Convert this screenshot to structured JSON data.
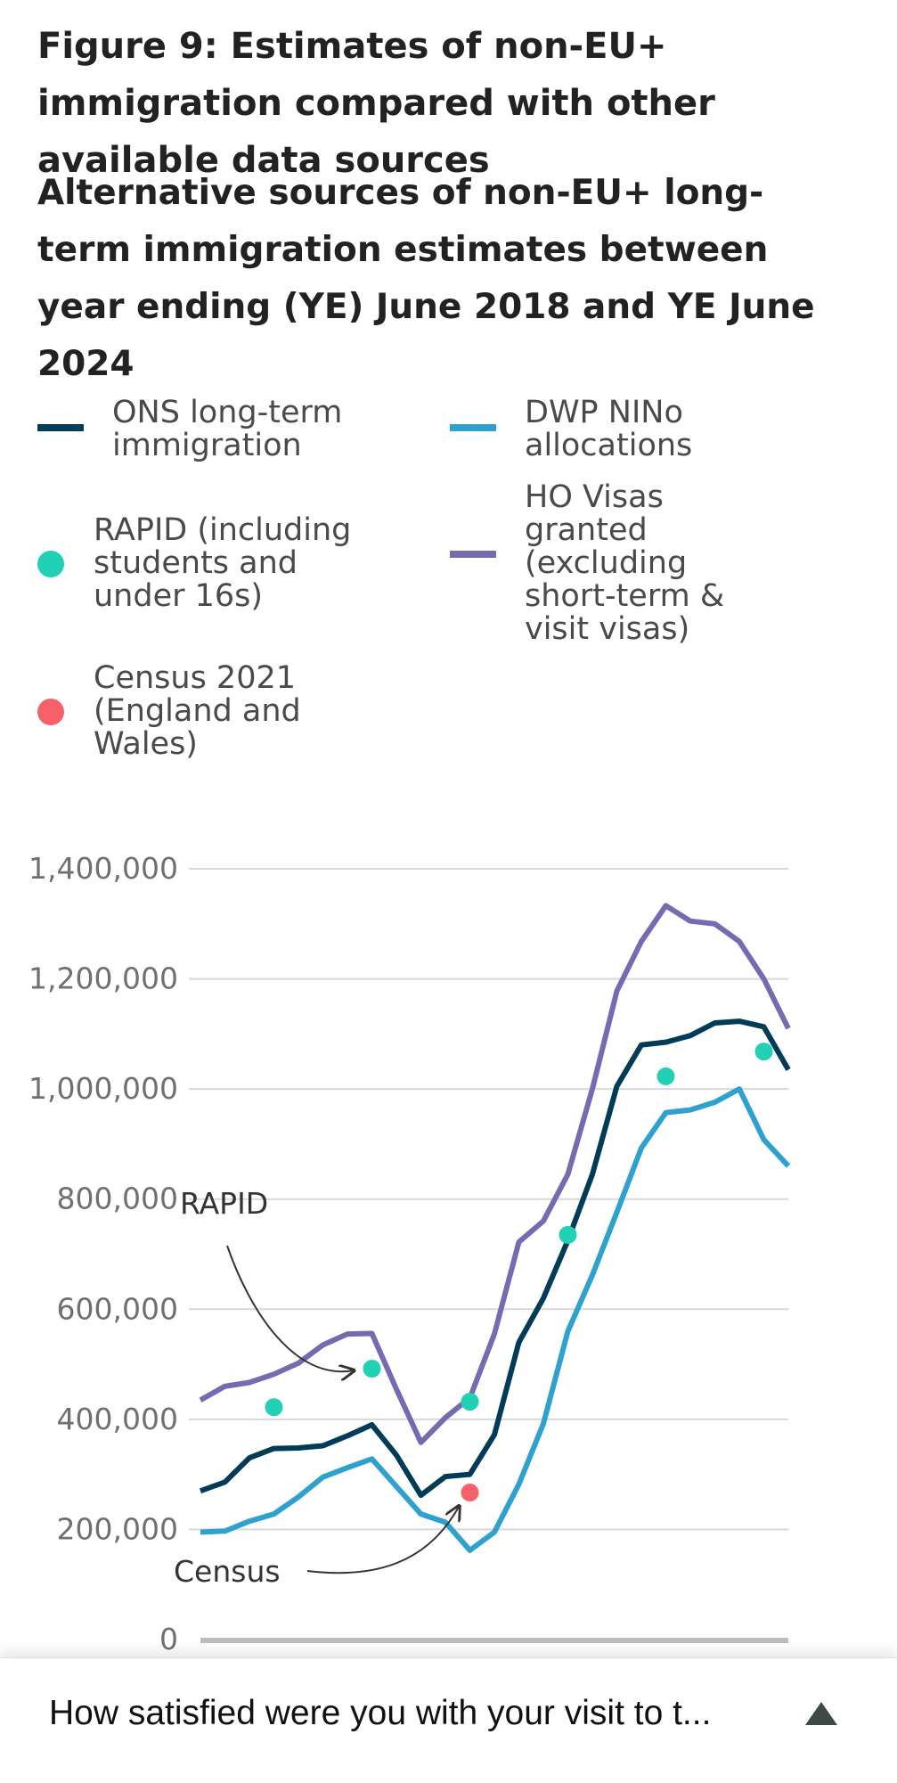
{
  "figure": {
    "title": "Figure 9: Estimates of non-EU+ immigration compared with other available data sources",
    "subtitle": "Alternative sources of non-EU+ long-term immigration estimates between year ending (YE) June 2018 and YE June 2024"
  },
  "legend": [
    {
      "label": "ONS long-term\nimmigration",
      "marker": "line",
      "color": "#003c57"
    },
    {
      "label": "DWP NINo\nallocations",
      "marker": "line",
      "color": "#2ea1cf"
    },
    {
      "label": "RAPID (including\nstudents and\nunder 16s)",
      "marker": "dot",
      "color": "#22d0b6"
    },
    {
      "label": "HO Visas\ngranted\n(excluding\nshort-term &\nvisit visas)",
      "marker": "line",
      "color": "#746cb1"
    },
    {
      "label": "Census 2021\n(England and\nWales)",
      "marker": "dot",
      "color": "#f66068"
    }
  ],
  "chart_data": {
    "type": "line",
    "ylim": [
      0,
      1400000
    ],
    "y_ticks": [
      "0",
      "200,000",
      "400,000",
      "600,000",
      "800,000",
      "1,000,000",
      "1,200,000",
      "1,400,000"
    ],
    "grid": true,
    "series": [
      {
        "name": "HO Visas granted (excluding short-term & visit visas)",
        "color": "#746cb1",
        "values": [
          435000,
          460000,
          467000,
          482000,
          502000,
          535000,
          555000,
          556000,
          455000,
          358000,
          403000,
          439000,
          555000,
          722000,
          760000,
          845000,
          1000000,
          1178000,
          1268000,
          1333000,
          1305000,
          1300000,
          1268000,
          1200000,
          1110000
        ]
      },
      {
        "name": "ONS long-term immigration",
        "color": "#003c57",
        "values": [
          270000,
          286000,
          330000,
          347000,
          348000,
          352000,
          370000,
          390000,
          335000,
          262000,
          296000,
          300000,
          372000,
          540000,
          620000,
          725000,
          845000,
          1005000,
          1080000,
          1085000,
          1097000,
          1120000,
          1123000,
          1113000,
          1035000
        ]
      },
      {
        "name": "DWP NINo allocations",
        "color": "#2ea1cf",
        "values": [
          195000,
          197000,
          215000,
          228000,
          259000,
          295000,
          312000,
          328000,
          278000,
          228000,
          213000,
          162000,
          195000,
          282000,
          392000,
          560000,
          662000,
          776000,
          893000,
          957000,
          962000,
          976000,
          1000000,
          908000,
          860000
        ]
      },
      {
        "name": "RAPID (including students and under 16s)",
        "color": "#22d0b6",
        "marker": "dot",
        "points": [
          [
            3,
            422000
          ],
          [
            7,
            492000
          ],
          [
            11,
            432000
          ],
          [
            15,
            735000
          ],
          [
            19,
            1023000
          ],
          [
            23,
            1068000
          ]
        ]
      },
      {
        "name": "Census 2021 (England and Wales)",
        "color": "#f66068",
        "marker": "dot",
        "points": [
          [
            11,
            267000
          ]
        ]
      }
    ],
    "annotations": [
      {
        "text": "RAPID",
        "target": [
          7,
          492000
        ]
      },
      {
        "text": "Census",
        "target": [
          11,
          267000
        ]
      }
    ]
  },
  "survey": {
    "text": "How satisfied were you with your visit to t...",
    "toggle_icon": "caret-up-icon"
  }
}
